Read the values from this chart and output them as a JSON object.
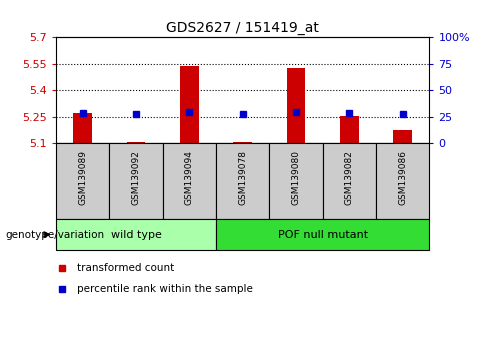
{
  "title": "GDS2627 / 151419_at",
  "samples": [
    "GSM139089",
    "GSM139092",
    "GSM139094",
    "GSM139078",
    "GSM139080",
    "GSM139082",
    "GSM139086"
  ],
  "transformed_counts": [
    5.27,
    5.107,
    5.535,
    5.108,
    5.525,
    5.255,
    5.175
  ],
  "percentile_ranks": [
    28.5,
    27.5,
    29.5,
    27.5,
    29.5,
    28.5,
    27.5
  ],
  "ylim_left": [
    5.1,
    5.7
  ],
  "ylim_right": [
    0,
    100
  ],
  "yticks_left": [
    5.1,
    5.25,
    5.4,
    5.55,
    5.7
  ],
  "yticks_right": [
    0,
    25,
    50,
    75,
    100
  ],
  "ytick_labels_left": [
    "5.1",
    "5.25",
    "5.4",
    "5.55",
    "5.7"
  ],
  "ytick_labels_right": [
    "0",
    "25",
    "50",
    "75",
    "100%"
  ],
  "groups": [
    {
      "name": "wild type",
      "indices": [
        0,
        1,
        2
      ],
      "color": "#AAFFAA"
    },
    {
      "name": "POF null mutant",
      "indices": [
        3,
        4,
        5,
        6
      ],
      "color": "#33DD33"
    }
  ],
  "bar_color": "#CC0000",
  "bar_base": 5.1,
  "dot_color": "#0000CC",
  "grid_color": "#000000",
  "grid_values": [
    5.25,
    5.4,
    5.55
  ],
  "legend_items": [
    {
      "label": "transformed count",
      "color": "#CC0000"
    },
    {
      "label": "percentile rank within the sample",
      "color": "#0000CC"
    }
  ],
  "group_label": "genotype/variation",
  "ylabel_left_color": "#CC0000",
  "ylabel_right_color": "#0000CC",
  "bar_width": 0.35,
  "label_box_color": "#CCCCCC",
  "label_box_edge": "#000000"
}
